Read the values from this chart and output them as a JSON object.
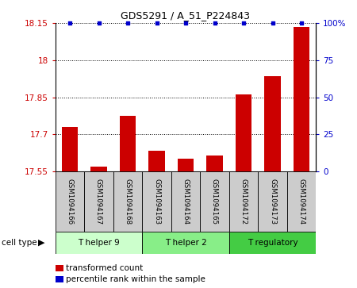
{
  "title": "GDS5291 / A_51_P224843",
  "samples": [
    "GSM1094166",
    "GSM1094167",
    "GSM1094168",
    "GSM1094163",
    "GSM1094164",
    "GSM1094165",
    "GSM1094172",
    "GSM1094173",
    "GSM1094174"
  ],
  "bar_values": [
    17.73,
    17.57,
    17.775,
    17.635,
    17.6,
    17.615,
    17.862,
    17.935,
    18.135
  ],
  "percentile_values": [
    100,
    100,
    100,
    100,
    100,
    100,
    100,
    100,
    100
  ],
  "ylim_left": [
    17.55,
    18.15
  ],
  "ylim_right": [
    0,
    100
  ],
  "yticks_left": [
    17.55,
    17.7,
    17.85,
    18.0,
    18.15
  ],
  "yticks_right": [
    0,
    25,
    50,
    75,
    100
  ],
  "ytick_labels_left": [
    "17.55",
    "17.7",
    "17.85",
    "18",
    "18.15"
  ],
  "ytick_labels_right": [
    "0",
    "25",
    "50",
    "75",
    "100%"
  ],
  "bar_color": "#cc0000",
  "dot_color": "#0000cc",
  "cell_types": [
    {
      "label": "T helper 9",
      "start": 0,
      "end": 3,
      "color": "#ccffcc"
    },
    {
      "label": "T helper 2",
      "start": 3,
      "end": 6,
      "color": "#88ee88"
    },
    {
      "label": "T regulatory",
      "start": 6,
      "end": 9,
      "color": "#44cc44"
    }
  ],
  "sample_box_color": "#cccccc",
  "legend_items": [
    {
      "label": "transformed count",
      "color": "#cc0000"
    },
    {
      "label": "percentile rank within the sample",
      "color": "#0000cc"
    }
  ],
  "cell_type_label": "cell type",
  "bar_width": 0.55
}
